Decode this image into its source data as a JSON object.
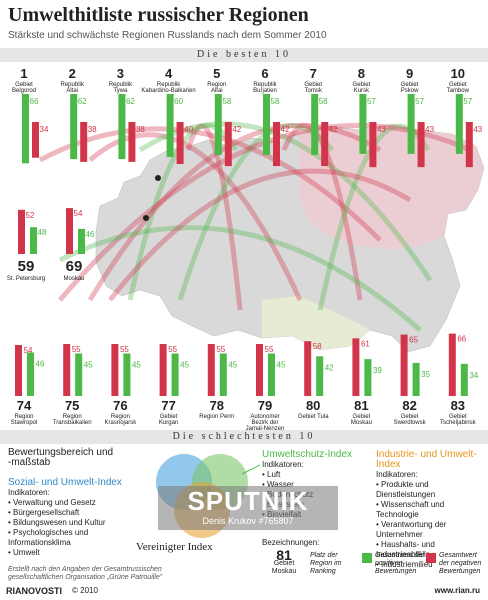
{
  "title": "Umwelthitliste russischer Regionen",
  "subtitle": "Stärkste und schwächste Regionen Russlands nach dem Sommer 2010",
  "band_top": "Die besten 10",
  "band_bottom": "Die schlechtesten 10",
  "colors": {
    "positive": "#4cb848",
    "negative": "#d2344a"
  },
  "chart_data": {
    "type": "bar",
    "best": [
      {
        "rank": "1",
        "name": "Gebiet Belgorod",
        "positive": 66,
        "negative": 34
      },
      {
        "rank": "2",
        "name": "Republik Altai",
        "positive": 62,
        "negative": 38
      },
      {
        "rank": "3",
        "name": "Republik Tywa",
        "positive": 62,
        "negative": 38
      },
      {
        "rank": "4",
        "name": "Republik Kabardino-Balkarien",
        "positive": 60,
        "negative": 40
      },
      {
        "rank": "5",
        "name": "Region Altai",
        "positive": 58,
        "negative": 42
      },
      {
        "rank": "6",
        "name": "Republik Burjatien",
        "positive": 58,
        "negative": 42
      },
      {
        "rank": "7",
        "name": "Gebiet Tomsk",
        "positive": 58,
        "negative": 42
      },
      {
        "rank": "8",
        "name": "Gebiet Kursk",
        "positive": 57,
        "negative": 43
      },
      {
        "rank": "9",
        "name": "Gebiet Pskow",
        "positive": 57,
        "negative": 43
      },
      {
        "rank": "10",
        "name": "Gebiet Tambow",
        "positive": 57,
        "negative": 43
      }
    ],
    "mid": [
      {
        "rank": "59",
        "name": "St. Petersburg",
        "positive": 48,
        "negative": 52
      },
      {
        "rank": "69",
        "name": "Moskau",
        "positive": 46,
        "negative": 54
      }
    ],
    "worst": [
      {
        "rank": "74",
        "name": "Region Stawropol",
        "positive": 46,
        "negative": 54
      },
      {
        "rank": "75",
        "name": "Region Transbaikalien",
        "positive": 45,
        "negative": 55
      },
      {
        "rank": "76",
        "name": "Region Krasnojarsk",
        "positive": 45,
        "negative": 55
      },
      {
        "rank": "77",
        "name": "Gebiet Kurgan",
        "positive": 45,
        "negative": 55
      },
      {
        "rank": "78",
        "name": "Region Perm",
        "positive": 45,
        "negative": 55
      },
      {
        "rank": "79",
        "name": "Autonomer Bezirk der Jamal-Nenzen",
        "positive": 45,
        "negative": 55
      },
      {
        "rank": "80",
        "name": "Gebiet Tula",
        "positive": 42,
        "negative": 58
      },
      {
        "rank": "81",
        "name": "Gebiet Moskau",
        "positive": 39,
        "negative": 61
      },
      {
        "rank": "82",
        "name": "Gebiet Swerdlowsk",
        "positive": 35,
        "negative": 65
      },
      {
        "rank": "83",
        "name": "Gebiet Tscheljabinsk",
        "positive": 34,
        "negative": 66
      }
    ]
  },
  "legend": {
    "heading": "Bewertungsbereich und -maßstab",
    "social_title": "Sozial- und Umwelt-Index",
    "social_sub": "Indikatoren:",
    "social_items": [
      "• Verwaltung und Gesetz",
      "• Bürgergesellschaft",
      "• Bildungswesen und Kultur",
      "• Psychologisches und Informationsklima",
      "• Umwelt"
    ],
    "env_title": "Umweltschutz-Index",
    "env_sub": "Indikatoren:",
    "env_items": [
      "• Luft",
      "• Wasser",
      "• Bodenschutz",
      "• Biosystem",
      "• Biovielfalt"
    ],
    "ind_title": "Industrie- und Umwelt-Index",
    "ind_sub": "Indikatoren:",
    "ind_items": [
      "• Produkte und Dienstleistungen",
      "• Wissenschaft und Technologie",
      "• Verantwortung der Unternehmer",
      "• Haushalts- und Industrieabfälle",
      "• Industriemilieu"
    ],
    "united": "Vereinigter Index",
    "key_heading": "Bezeichnungen:",
    "key_rank": "81",
    "key_region": "Gebiet Moskau",
    "key_rank_desc": "Platz der Region im Ranking",
    "key_pos_desc": "Gesamtwert der positiven Bewertungen",
    "key_neg_desc": "Gesamtwert der negativen Bewertungen",
    "source": "Erstellt nach den Angaben der Gesamtrussischen gesellschaftlichen Organisation „Grüne Patrouille\""
  },
  "watermark": {
    "brand": "SPUTNIK",
    "credit": "Denis Krukov #765807"
  },
  "footer": {
    "brand": "RIANOVOSTI",
    "copyright": "© 2010",
    "url": "www.rian.ru"
  }
}
